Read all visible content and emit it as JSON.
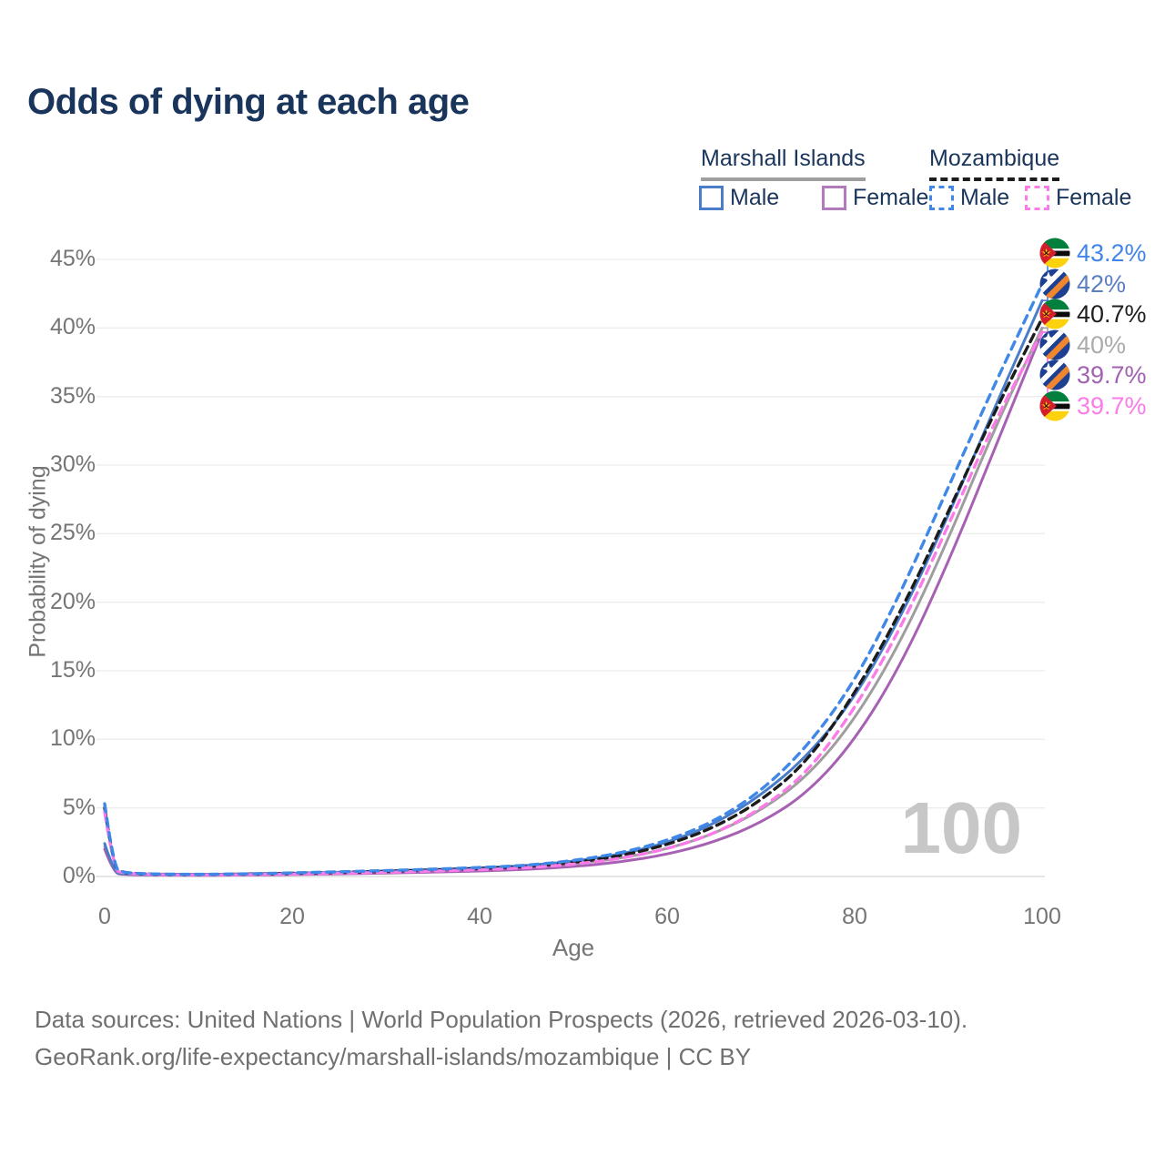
{
  "title": "Odds of dying at each age",
  "watermark": "100",
  "footer": {
    "line1": "Data sources: United Nations | World Population Prospects (2026, retrieved 2026-03-10).",
    "line2": "GeoRank.org/life-expectancy/marshall-islands/mozambique | CC BY"
  },
  "legend": {
    "groups": [
      {
        "label": "Marshall Islands",
        "underline": "solid",
        "underline_color": "#9e9e9e",
        "items": [
          {
            "label": "Male",
            "swatch": "solid",
            "color": "#4a7dc9"
          },
          {
            "label": "Female",
            "swatch": "solid",
            "color": "#b279bd"
          }
        ]
      },
      {
        "label": "Mozambique",
        "underline": "dashed",
        "underline_color": "#1c1c1c",
        "items": [
          {
            "label": "Male",
            "swatch": "dashed",
            "color": "#3f88e8"
          },
          {
            "label": "Female",
            "swatch": "dashed",
            "color": "#fb7ce8"
          }
        ]
      }
    ]
  },
  "chart_data": {
    "type": "line",
    "title": "Odds of dying at each age",
    "xlabel": "Age",
    "ylabel": "Probability of dying",
    "xlim": [
      0,
      100
    ],
    "ylim": [
      0,
      45
    ],
    "grid": "horizontal",
    "legend_position": "top-right",
    "xticks": {
      "values": [
        0,
        20,
        40,
        60,
        80,
        100
      ],
      "labels": [
        "0",
        "20",
        "40",
        "60",
        "80",
        "100"
      ]
    },
    "yticks": {
      "values": [
        0,
        5,
        10,
        15,
        20,
        25,
        30,
        35,
        40,
        45
      ],
      "labels": [
        "0%",
        "5%",
        "10%",
        "15%",
        "20%",
        "25%",
        "30%",
        "35%",
        "40%",
        "45%"
      ]
    },
    "x": [
      0,
      1,
      2,
      3,
      5,
      10,
      15,
      20,
      25,
      30,
      35,
      40,
      45,
      50,
      55,
      60,
      65,
      70,
      75,
      80,
      85,
      90,
      95,
      100
    ],
    "series": [
      {
        "name": "Mozambique Male",
        "flag": "mozambique",
        "color": "#3f88e8",
        "dash": "9 7",
        "width": 3.4,
        "end_label": "43.2%",
        "end_label_color": "#4285e8",
        "values": [
          5.3,
          0.55,
          0.32,
          0.24,
          0.18,
          0.15,
          0.19,
          0.26,
          0.34,
          0.43,
          0.53,
          0.65,
          0.8,
          1.15,
          1.7,
          2.6,
          4.0,
          6.2,
          9.5,
          14.2,
          20.8,
          28.4,
          36.0,
          43.2
        ]
      },
      {
        "name": "Marshall Islands Male",
        "flag": "marshall-islands",
        "color": "#4a7dc9",
        "dash": null,
        "width": 3,
        "end_label": "42%",
        "end_label_color": "#5b7fc0",
        "values": [
          2.4,
          0.28,
          0.2,
          0.16,
          0.13,
          0.11,
          0.16,
          0.24,
          0.31,
          0.4,
          0.5,
          0.62,
          0.78,
          1.1,
          1.6,
          2.45,
          3.8,
          5.9,
          8.8,
          13.0,
          19.0,
          26.3,
          34.3,
          42.0
        ]
      },
      {
        "name": "Mozambique Both Sexes",
        "flag": "mozambique",
        "color": "#1c1c1c",
        "dash": "9 6",
        "width": 3.4,
        "end_label": "40.7%",
        "end_label_color": "#1f1f1f",
        "values": [
          5.0,
          0.5,
          0.3,
          0.22,
          0.17,
          0.14,
          0.17,
          0.23,
          0.3,
          0.38,
          0.47,
          0.58,
          0.72,
          1.0,
          1.5,
          2.3,
          3.55,
          5.5,
          8.4,
          13.3,
          19.4,
          26.6,
          34.0,
          40.7
        ]
      },
      {
        "name": "Marshall Islands Both Sexes",
        "flag": "marshall-islands",
        "color": "#9e9e9e",
        "dash": null,
        "width": 3,
        "end_label": "40%",
        "end_label_color": "#ababab",
        "values": [
          2.2,
          0.25,
          0.18,
          0.14,
          0.12,
          0.1,
          0.13,
          0.19,
          0.25,
          0.32,
          0.41,
          0.51,
          0.64,
          0.9,
          1.32,
          2.0,
          3.1,
          4.8,
          7.3,
          11.4,
          17.2,
          24.6,
          32.8,
          40.0
        ]
      },
      {
        "name": "Marshall Islands Female",
        "flag": "marshall-islands",
        "color": "#a761b3",
        "dash": null,
        "width": 3,
        "end_label": "39.7%",
        "end_label_color": "#a361b2",
        "values": [
          2.0,
          0.22,
          0.16,
          0.12,
          0.1,
          0.08,
          0.1,
          0.14,
          0.19,
          0.25,
          0.32,
          0.4,
          0.51,
          0.72,
          1.05,
          1.6,
          2.5,
          3.9,
          6.1,
          9.9,
          15.5,
          22.9,
          31.3,
          39.7
        ]
      },
      {
        "name": "Mozambique Female",
        "flag": "mozambique",
        "color": "#fb7ce8",
        "dash": "9 7",
        "width": 3.4,
        "end_label": "39.7%",
        "end_label_color": "#fb7ce8",
        "values": [
          4.7,
          0.45,
          0.27,
          0.2,
          0.15,
          0.12,
          0.14,
          0.18,
          0.24,
          0.31,
          0.4,
          0.5,
          0.63,
          0.88,
          1.3,
          2.0,
          3.1,
          4.9,
          7.6,
          12.2,
          18.2,
          25.6,
          33.3,
          39.7
        ]
      }
    ]
  }
}
